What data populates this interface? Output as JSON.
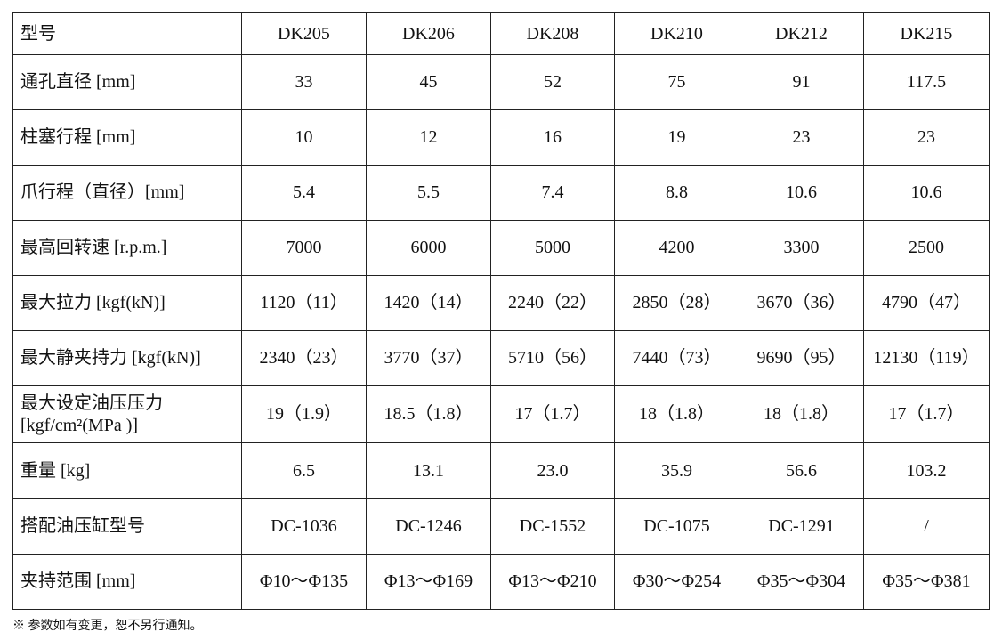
{
  "table": {
    "header": [
      "型号",
      "DK205",
      "DK206",
      "DK208",
      "DK210",
      "DK212",
      "DK215"
    ],
    "rows": [
      [
        "通孔直径 [mm]",
        "33",
        "45",
        "52",
        "75",
        "91",
        "117.5"
      ],
      [
        "柱塞行程 [mm]",
        "10",
        "12",
        "16",
        "19",
        "23",
        "23"
      ],
      [
        "爪行程（直径）[mm]",
        "5.4",
        "5.5",
        "7.4",
        "8.8",
        "10.6",
        "10.6"
      ],
      [
        "最高回转速 [r.p.m.]",
        "7000",
        "6000",
        "5000",
        "4200",
        "3300",
        "2500"
      ],
      [
        "最大拉力 [kgf(kN)]",
        "1120（11）",
        "1420（14）",
        "2240（22）",
        "2850（28）",
        "3670（36）",
        "4790（47）"
      ],
      [
        "最大静夹持力 [kgf(kN)]",
        "2340（23）",
        "3770（37）",
        "5710（56）",
        "7440（73）",
        "9690（95）",
        "12130（119）"
      ],
      [
        "最大设定油压压力\n[kgf/cm²(MPa )]",
        "19（1.9）",
        "18.5（1.8）",
        "17（1.7）",
        "18（1.8）",
        "18（1.8）",
        "17（1.7）"
      ],
      [
        "重量 [kg]",
        "6.5",
        "13.1",
        "23.0",
        "35.9",
        "56.6",
        "103.2"
      ],
      [
        "搭配油压缸型号",
        "DC-1036",
        "DC-1246",
        "DC-1552",
        "DC-1075",
        "DC-1291",
        "/"
      ],
      [
        "夹持范围 [mm]",
        "Φ10～Φ135",
        "Φ13～Φ169",
        "Φ13～Φ210",
        "Φ30～Φ254",
        "Φ35～Φ304",
        "Φ35～Φ381"
      ]
    ]
  },
  "footnote": "※ 参数如有变更，恕不另行通知。"
}
